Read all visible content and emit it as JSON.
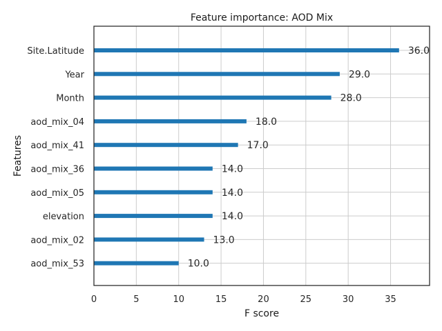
{
  "chart_data": {
    "type": "bar",
    "orientation": "horizontal",
    "title": "Feature importance: AOD Mix",
    "xlabel": "F score",
    "ylabel": "Features",
    "xlim": [
      0,
      39.6
    ],
    "xticks": [
      0,
      5,
      10,
      15,
      20,
      25,
      30,
      35
    ],
    "grid": true,
    "bar_color": "#1f77b4",
    "categories": [
      "Site.Latitude",
      "Year",
      "Month",
      "aod_mix_04",
      "aod_mix_41",
      "aod_mix_36",
      "aod_mix_05",
      "elevation",
      "aod_mix_02",
      "aod_mix_53"
    ],
    "values": [
      36,
      29,
      28,
      18,
      17,
      14,
      14,
      14,
      13,
      10
    ],
    "value_labels": [
      "36.0",
      "29.0",
      "28.0",
      "18.0",
      "17.0",
      "14.0",
      "14.0",
      "14.0",
      "13.0",
      "10.0"
    ]
  }
}
